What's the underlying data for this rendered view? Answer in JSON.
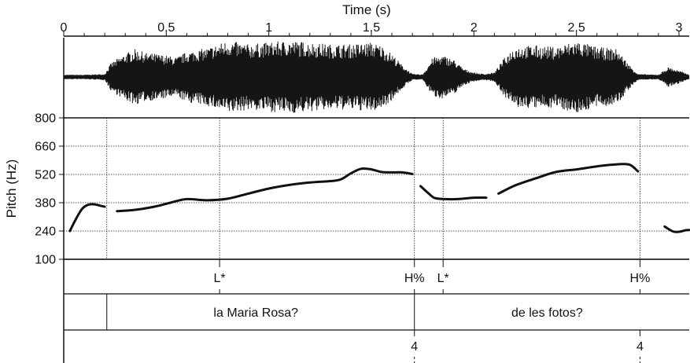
{
  "chart_data": {
    "type": "line",
    "time_axis": {
      "label": "Time (s)",
      "range": [
        0,
        3.05
      ],
      "ticks": [
        0,
        0.5,
        1,
        1.5,
        2,
        2.5,
        3
      ],
      "tick_labels": [
        "0",
        "0.5",
        "1",
        "1.5",
        "2",
        "2.5",
        "3"
      ]
    },
    "pitch_axis": {
      "label": "Pitch (Hz)",
      "range": [
        100,
        800
      ],
      "ticks": [
        100,
        240,
        380,
        520,
        660,
        800
      ],
      "tick_labels": [
        "100",
        "240",
        "380",
        "520",
        "660",
        "800"
      ]
    },
    "pitch_segments": [
      {
        "x": [
          0.03,
          0.06,
          0.09,
          0.12,
          0.15,
          0.18,
          0.2
        ],
        "y": [
          240,
          300,
          350,
          370,
          372,
          365,
          360
        ]
      },
      {
        "x": [
          0.26,
          0.35,
          0.45,
          0.52,
          0.6,
          0.7,
          0.8,
          0.9,
          1.0,
          1.1,
          1.2,
          1.3,
          1.35,
          1.4,
          1.45,
          1.5,
          1.55,
          1.6,
          1.65,
          1.7
        ],
        "y": [
          338,
          345,
          362,
          380,
          398,
          392,
          400,
          425,
          450,
          468,
          480,
          487,
          495,
          525,
          548,
          545,
          532,
          530,
          530,
          522
        ]
      },
      {
        "x": [
          1.74,
          1.78,
          1.81,
          1.86,
          1.92,
          2.0,
          2.06
        ],
        "y": [
          462,
          425,
          403,
          398,
          398,
          405,
          405
        ]
      },
      {
        "x": [
          2.12,
          2.2,
          2.3,
          2.4,
          2.5,
          2.6,
          2.7,
          2.76,
          2.8
        ],
        "y": [
          425,
          465,
          500,
          532,
          545,
          560,
          570,
          568,
          535
        ]
      },
      {
        "x": [
          2.93,
          2.97,
          3.0,
          3.03,
          3.05
        ],
        "y": [
          262,
          238,
          236,
          243,
          245
        ]
      }
    ],
    "waveform": {
      "x": [
        0,
        0.1,
        0.2,
        0.23,
        0.3,
        0.35,
        0.4,
        0.45,
        0.5,
        0.55,
        0.6,
        0.7,
        0.8,
        0.9,
        1.0,
        1.1,
        1.2,
        1.3,
        1.4,
        1.5,
        1.55,
        1.6,
        1.65,
        1.7,
        1.75,
        1.8,
        1.85,
        1.9,
        1.95,
        2.0,
        2.05,
        2.1,
        2.15,
        2.2,
        2.3,
        2.4,
        2.5,
        2.6,
        2.7,
        2.75,
        2.8,
        2.9,
        2.95,
        3.05
      ],
      "amplitude": [
        0.04,
        0.04,
        0.06,
        0.35,
        0.6,
        0.72,
        0.62,
        0.6,
        0.55,
        0.5,
        0.65,
        0.75,
        0.95,
        0.85,
        0.9,
        0.95,
        0.9,
        0.85,
        0.85,
        0.9,
        0.82,
        0.6,
        0.3,
        0.06,
        0.05,
        0.5,
        0.55,
        0.45,
        0.2,
        0.1,
        0.06,
        0.1,
        0.5,
        0.8,
        0.82,
        0.78,
        0.95,
        0.78,
        0.72,
        0.35,
        0.06,
        0.04,
        0.25,
        0.05
      ]
    },
    "boundaries": {
      "pitch_tier": [
        0.21,
        0.76,
        1.71,
        1.85,
        2.81
      ],
      "tone_tier": [
        0.76,
        1.71,
        1.85,
        2.81
      ],
      "words_tier": [
        0.21,
        1.71
      ],
      "break_tier": [
        1.71,
        2.81
      ]
    },
    "tone_labels": [
      {
        "t": 0.76,
        "label": "L*"
      },
      {
        "t": 1.71,
        "label": "H%"
      },
      {
        "t": 1.85,
        "label": "L*"
      },
      {
        "t": 2.81,
        "label": "H%"
      }
    ],
    "words": [
      {
        "start": 0.21,
        "end": 1.71,
        "label": "la Maria Rosa?"
      },
      {
        "start": 1.71,
        "end": 3.05,
        "label": "de les fotos?"
      }
    ],
    "break_labels": [
      {
        "t": 1.71,
        "label": "4"
      },
      {
        "t": 2.81,
        "label": "4"
      }
    ],
    "grid": true
  }
}
